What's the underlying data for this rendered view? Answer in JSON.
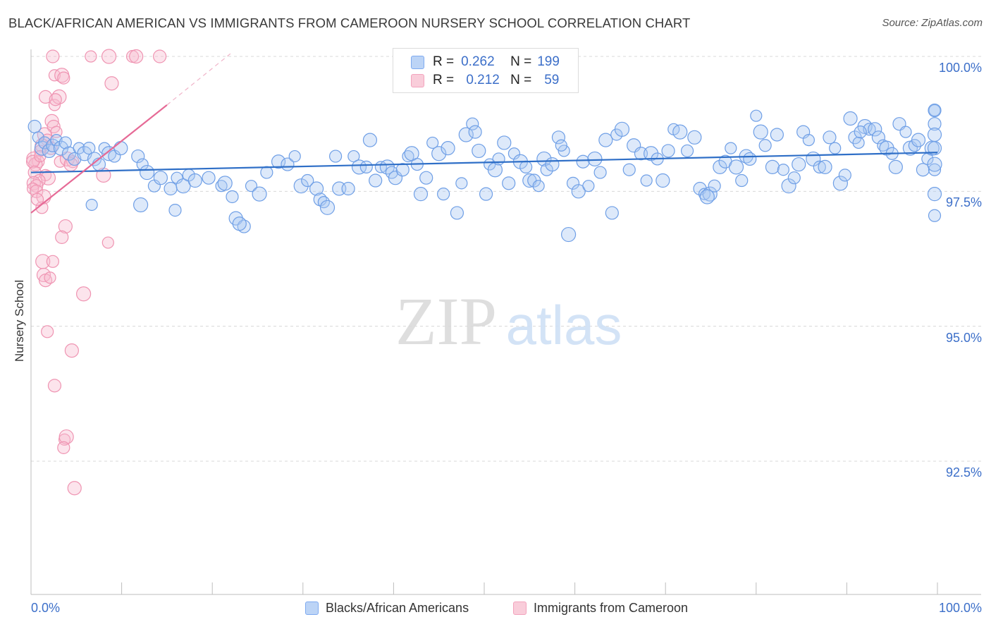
{
  "chart_data": {
    "type": "scatter",
    "title": "BLACK/AFRICAN AMERICAN VS IMMIGRANTS FROM CAMEROON NURSERY SCHOOL CORRELATION CHART",
    "source": "Source: ZipAtlas.com",
    "ylabel": "Nursery School",
    "xlabel": "",
    "xlim": [
      0,
      100
    ],
    "ylim": [
      90.0,
      100.2
    ],
    "x_tick_labels": [
      "0.0%",
      "100.0%"
    ],
    "y_ticks": [
      92.5,
      95.0,
      97.5,
      100.0
    ],
    "y_tick_labels": [
      "92.5%",
      "95.0%",
      "97.5%",
      "100.0%"
    ],
    "watermark": {
      "zip": "ZIP",
      "atlas": "atlas"
    },
    "legend": {
      "r_label": "R =",
      "n_label": "N =",
      "entries": [
        {
          "name": "Blacks/African Americans",
          "r": "0.262",
          "n": "199",
          "color": "#7eaaf0"
        },
        {
          "name": "Immigrants from Cameroon",
          "r": "0.212",
          "n": "59",
          "color": "#f3a3bd"
        }
      ]
    },
    "series": [
      {
        "name": "Blacks/African Americans",
        "color": "#7eaaf0",
        "line_color": "#2f6fc7",
        "trend": {
          "x": [
            0,
            100
          ],
          "y": [
            97.85,
            98.22
          ]
        },
        "points": [
          [
            0.4,
            98.7
          ],
          [
            0.8,
            98.5
          ],
          [
            1.2,
            98.3
          ],
          [
            1.5,
            98.4
          ],
          [
            2.0,
            98.25
          ],
          [
            2.4,
            98.35
          ],
          [
            2.8,
            98.45
          ],
          [
            3.3,
            98.3
          ],
          [
            3.8,
            98.4
          ],
          [
            4.2,
            98.2
          ],
          [
            4.8,
            98.1
          ],
          [
            5.3,
            98.3
          ],
          [
            5.9,
            98.2
          ],
          [
            6.4,
            98.3
          ],
          [
            7.0,
            98.1
          ],
          [
            7.5,
            98.0
          ],
          [
            8.1,
            98.3
          ],
          [
            8.6,
            98.2
          ],
          [
            9.2,
            98.15
          ],
          [
            9.9,
            98.3
          ],
          [
            11.8,
            98.15
          ],
          [
            12.3,
            98.0
          ],
          [
            12.8,
            97.85
          ],
          [
            13.6,
            97.6
          ],
          [
            14.3,
            97.75
          ],
          [
            15.4,
            97.55
          ],
          [
            16.1,
            97.75
          ],
          [
            16.8,
            97.6
          ],
          [
            17.4,
            97.8
          ],
          [
            18.1,
            97.7
          ],
          [
            19.6,
            97.75
          ],
          [
            21.0,
            97.6
          ],
          [
            21.4,
            97.65
          ],
          [
            22.2,
            97.4
          ],
          [
            22.6,
            97.0
          ],
          [
            23.5,
            96.85
          ],
          [
            24.3,
            97.6
          ],
          [
            25.2,
            97.45
          ],
          [
            26.0,
            97.85
          ],
          [
            27.3,
            98.05
          ],
          [
            28.3,
            98.0
          ],
          [
            29.1,
            98.15
          ],
          [
            29.8,
            97.6
          ],
          [
            30.5,
            97.7
          ],
          [
            31.5,
            97.55
          ],
          [
            31.9,
            97.35
          ],
          [
            32.3,
            97.3
          ],
          [
            32.7,
            97.2
          ],
          [
            33.6,
            98.15
          ],
          [
            34.0,
            97.55
          ],
          [
            35.0,
            97.55
          ],
          [
            35.6,
            98.15
          ],
          [
            36.2,
            97.95
          ],
          [
            37.0,
            97.95
          ],
          [
            37.4,
            98.45
          ],
          [
            38.0,
            97.7
          ],
          [
            38.6,
            97.95
          ],
          [
            39.3,
            97.95
          ],
          [
            39.8,
            97.85
          ],
          [
            40.2,
            97.75
          ],
          [
            41.0,
            97.9
          ],
          [
            41.6,
            98.15
          ],
          [
            42.0,
            98.2
          ],
          [
            42.6,
            98.0
          ],
          [
            43.0,
            97.45
          ],
          [
            43.6,
            97.75
          ],
          [
            44.3,
            98.4
          ],
          [
            45.0,
            98.2
          ],
          [
            45.5,
            97.45
          ],
          [
            46.0,
            98.3
          ],
          [
            47.0,
            97.1
          ],
          [
            47.5,
            97.65
          ],
          [
            48.0,
            98.55
          ],
          [
            48.7,
            98.75
          ],
          [
            49.4,
            98.25
          ],
          [
            50.2,
            97.45
          ],
          [
            50.6,
            98.0
          ],
          [
            51.2,
            97.9
          ],
          [
            51.6,
            98.1
          ],
          [
            52.2,
            98.4
          ],
          [
            52.7,
            97.65
          ],
          [
            53.3,
            98.2
          ],
          [
            54.0,
            98.05
          ],
          [
            54.6,
            97.95
          ],
          [
            55.0,
            97.7
          ],
          [
            55.5,
            97.7
          ],
          [
            56.0,
            97.6
          ],
          [
            56.6,
            98.1
          ],
          [
            56.9,
            97.9
          ],
          [
            57.5,
            98.0
          ],
          [
            58.2,
            98.5
          ],
          [
            58.8,
            98.25
          ],
          [
            59.3,
            96.7
          ],
          [
            59.8,
            97.65
          ],
          [
            60.4,
            97.5
          ],
          [
            60.9,
            98.05
          ],
          [
            61.5,
            97.6
          ],
          [
            62.2,
            98.1
          ],
          [
            62.8,
            97.85
          ],
          [
            63.4,
            98.45
          ],
          [
            64.1,
            97.1
          ],
          [
            64.6,
            98.55
          ],
          [
            65.2,
            98.65
          ],
          [
            66.0,
            97.9
          ],
          [
            66.5,
            98.35
          ],
          [
            67.3,
            98.2
          ],
          [
            67.9,
            97.7
          ],
          [
            68.4,
            98.2
          ],
          [
            69.1,
            98.1
          ],
          [
            69.7,
            97.7
          ],
          [
            70.3,
            98.25
          ],
          [
            70.9,
            98.65
          ],
          [
            71.6,
            98.6
          ],
          [
            72.4,
            98.25
          ],
          [
            73.2,
            98.5
          ],
          [
            73.8,
            97.55
          ],
          [
            74.3,
            97.45
          ],
          [
            74.9,
            97.45
          ],
          [
            75.4,
            97.6
          ],
          [
            76.0,
            97.95
          ],
          [
            76.6,
            98.05
          ],
          [
            77.2,
            98.3
          ],
          [
            77.8,
            97.95
          ],
          [
            78.4,
            97.7
          ],
          [
            78.9,
            98.15
          ],
          [
            79.3,
            98.1
          ],
          [
            80.0,
            98.9
          ],
          [
            80.5,
            98.6
          ],
          [
            81.0,
            98.35
          ],
          [
            81.8,
            97.95
          ],
          [
            82.3,
            98.55
          ],
          [
            83.0,
            97.9
          ],
          [
            83.6,
            97.6
          ],
          [
            84.2,
            97.75
          ],
          [
            84.7,
            98.0
          ],
          [
            85.2,
            98.6
          ],
          [
            85.8,
            98.45
          ],
          [
            86.3,
            98.1
          ],
          [
            87.0,
            97.95
          ],
          [
            87.6,
            97.95
          ],
          [
            88.1,
            98.5
          ],
          [
            88.7,
            98.3
          ],
          [
            89.3,
            97.65
          ],
          [
            89.8,
            97.8
          ],
          [
            90.4,
            98.85
          ],
          [
            90.9,
            98.5
          ],
          [
            91.3,
            98.4
          ],
          [
            92.0,
            98.7
          ],
          [
            92.5,
            98.65
          ],
          [
            93.1,
            98.65
          ],
          [
            93.5,
            98.5
          ],
          [
            94.0,
            98.35
          ],
          [
            94.4,
            98.3
          ],
          [
            95.0,
            98.2
          ],
          [
            95.4,
            97.95
          ],
          [
            95.8,
            98.75
          ],
          [
            96.5,
            98.6
          ],
          [
            97.0,
            98.3
          ],
          [
            97.5,
            98.35
          ],
          [
            97.9,
            98.45
          ],
          [
            98.4,
            97.9
          ],
          [
            98.9,
            98.1
          ],
          [
            99.4,
            98.3
          ],
          [
            100.0,
            97.9
          ],
          [
            100.4,
            97.45
          ],
          [
            100.8,
            98.75
          ],
          [
            101.3,
            99.0
          ],
          [
            102.0,
            98.0
          ],
          [
            102.6,
            97.05
          ],
          [
            103.2,
            98.55
          ],
          [
            103.8,
            99.0
          ],
          [
            6.7,
            97.25
          ],
          [
            12.1,
            97.25
          ],
          [
            15.9,
            97.15
          ],
          [
            23.0,
            96.9
          ],
          [
            49.0,
            98.6
          ],
          [
            58.5,
            98.35
          ],
          [
            74.6,
            97.4
          ],
          [
            91.5,
            98.6
          ],
          [
            104.2,
            98.3
          ]
        ]
      },
      {
        "name": "Immigrants from Cameroon",
        "color": "#f3a3bd",
        "line_color": "#e66a96",
        "trend": {
          "x": [
            0,
            15
          ],
          "y": [
            97.1,
            99.1
          ]
        },
        "trend_dashed": {
          "x": [
            15,
            22
          ],
          "y": [
            99.1,
            100.05
          ]
        },
        "points": [
          [
            2.4,
            100.0
          ],
          [
            6.6,
            100.0
          ],
          [
            8.6,
            100.0
          ],
          [
            11.2,
            100.0
          ],
          [
            11.6,
            100.0
          ],
          [
            14.2,
            100.0
          ],
          [
            2.6,
            99.65
          ],
          [
            3.4,
            99.65
          ],
          [
            3.6,
            99.6
          ],
          [
            8.9,
            99.5
          ],
          [
            1.6,
            99.25
          ],
          [
            2.6,
            99.1
          ],
          [
            3.1,
            99.25
          ],
          [
            2.7,
            99.2
          ],
          [
            2.3,
            98.8
          ],
          [
            2.5,
            98.7
          ],
          [
            2.8,
            98.6
          ],
          [
            1.5,
            98.55
          ],
          [
            1.8,
            98.45
          ],
          [
            1.2,
            98.35
          ],
          [
            2.2,
            98.3
          ],
          [
            1.0,
            98.25
          ],
          [
            0.3,
            98.1
          ],
          [
            0.8,
            98.05
          ],
          [
            0.5,
            98.0
          ],
          [
            0.2,
            98.05
          ],
          [
            3.2,
            98.05
          ],
          [
            4.0,
            98.1
          ],
          [
            4.6,
            98.05
          ],
          [
            4.4,
            98.0
          ],
          [
            0.4,
            97.85
          ],
          [
            1.6,
            97.8
          ],
          [
            1.9,
            97.75
          ],
          [
            0.9,
            97.7
          ],
          [
            0.3,
            97.65
          ],
          [
            0.6,
            97.6
          ],
          [
            0.2,
            97.55
          ],
          [
            8.0,
            97.8
          ],
          [
            1.2,
            97.2
          ],
          [
            3.8,
            96.85
          ],
          [
            3.4,
            96.65
          ],
          [
            8.5,
            96.55
          ],
          [
            1.3,
            96.2
          ],
          [
            2.4,
            96.2
          ],
          [
            1.4,
            95.95
          ],
          [
            1.6,
            95.85
          ],
          [
            2.1,
            95.9
          ],
          [
            5.8,
            95.6
          ],
          [
            1.8,
            94.9
          ],
          [
            4.5,
            94.55
          ],
          [
            2.6,
            93.9
          ],
          [
            3.7,
            92.9
          ],
          [
            3.9,
            92.95
          ],
          [
            3.6,
            92.75
          ],
          [
            4.8,
            92.0
          ],
          [
            0.6,
            97.5
          ],
          [
            1.0,
            98.15
          ],
          [
            1.4,
            97.4
          ],
          [
            0.7,
            97.35
          ]
        ]
      }
    ]
  }
}
